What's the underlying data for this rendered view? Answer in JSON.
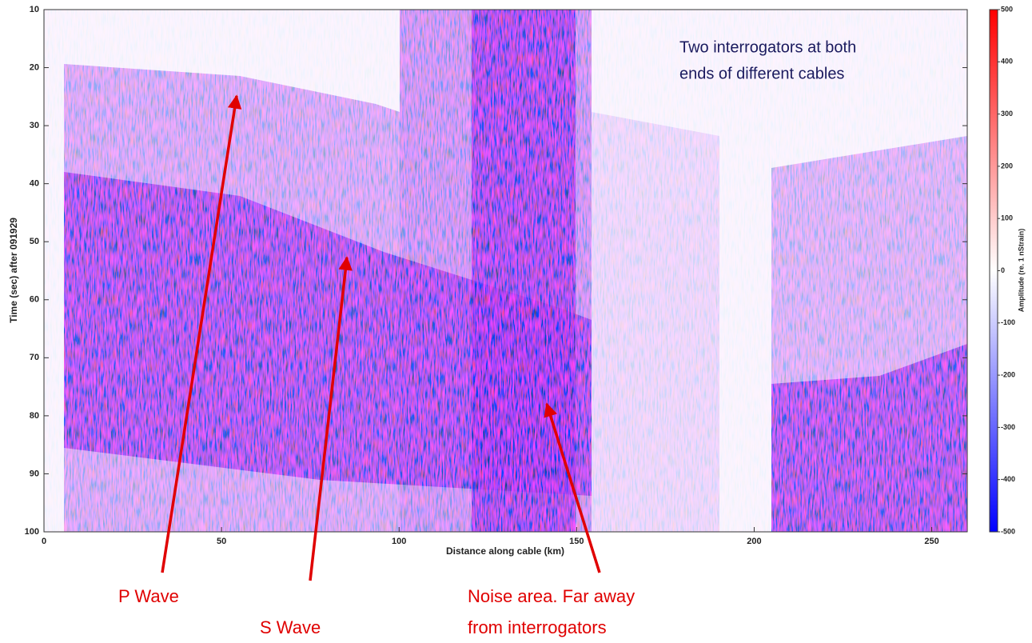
{
  "chart_data": {
    "type": "heatmap",
    "xlabel": "Distance along cable (km)",
    "ylabel": "Time (sec) after 091929",
    "xlim": [
      0,
      260
    ],
    "xticks": [
      0,
      50,
      100,
      150,
      200,
      250
    ],
    "ylim": [
      100,
      10
    ],
    "yticks": [
      10,
      20,
      30,
      40,
      50,
      60,
      70,
      80,
      90,
      100
    ],
    "colorbar": {
      "label": "Amplitude (re. 1 nStrain)",
      "zlim": [
        -500,
        500
      ],
      "zticks": [
        -500,
        -400,
        -300,
        -200,
        -100,
        0,
        100,
        200,
        300,
        400,
        500
      ],
      "colors": [
        "#0000ff",
        "#ffffff",
        "#ff0000"
      ]
    },
    "annotations": {
      "interrogators": [
        "Two interrogators at both",
        "ends of different cables"
      ],
      "p_wave": "P Wave",
      "s_wave": "S Wave",
      "noise": [
        "Noise area. Far away",
        "from interrogators"
      ]
    }
  }
}
